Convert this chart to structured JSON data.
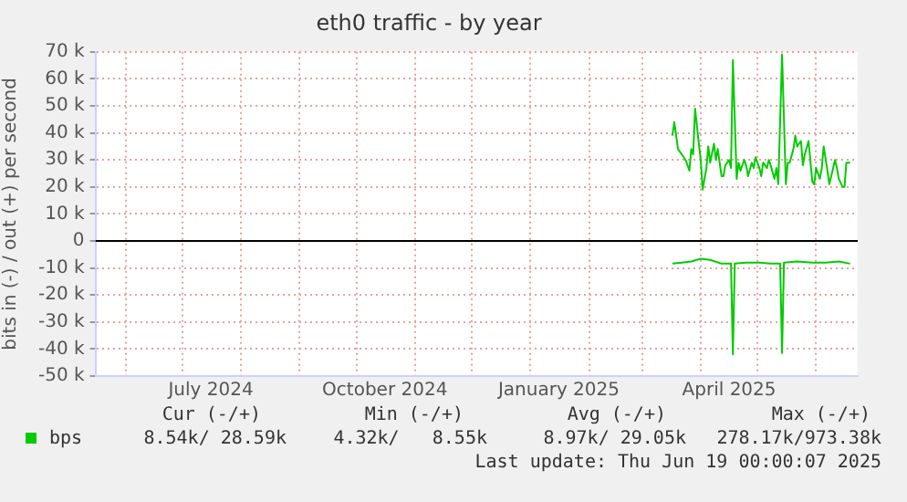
{
  "chart_data": {
    "type": "line",
    "title": "eth0 traffic - by year",
    "ylabel": "bits in (-) / out (+) per second",
    "xlim": [
      "2024-05-16",
      "2025-06-23"
    ],
    "xticks": [
      {
        "value": "2024-06-01",
        "label": null
      },
      {
        "value": "2024-07-01",
        "label": null
      },
      {
        "value": "2024-07-16",
        "label": "July 2024"
      },
      {
        "value": "2024-08-01",
        "label": null
      },
      {
        "value": "2024-09-01",
        "label": null
      },
      {
        "value": "2024-10-01",
        "label": null
      },
      {
        "value": "2024-10-16",
        "label": "October 2024"
      },
      {
        "value": "2024-11-01",
        "label": null
      },
      {
        "value": "2024-12-01",
        "label": null
      },
      {
        "value": "2025-01-01",
        "label": null
      },
      {
        "value": "2025-01-16",
        "label": "January 2025"
      },
      {
        "value": "2025-02-01",
        "label": null
      },
      {
        "value": "2025-03-01",
        "label": null
      },
      {
        "value": "2025-04-01",
        "label": null
      },
      {
        "value": "2025-04-16",
        "label": "April 2025"
      },
      {
        "value": "2025-05-01",
        "label": null
      },
      {
        "value": "2025-06-01",
        "label": null
      }
    ],
    "ylim": [
      -50000,
      70000
    ],
    "yticks": [
      {
        "value": -50000,
        "label": "-50 k"
      },
      {
        "value": -40000,
        "label": "-40 k"
      },
      {
        "value": -30000,
        "label": "-30 k"
      },
      {
        "value": -20000,
        "label": "-20 k"
      },
      {
        "value": -10000,
        "label": "-10 k"
      },
      0,
      {
        "value": 10000,
        "label": "10 k"
      },
      {
        "value": 20000,
        "label": "20 k"
      },
      {
        "value": 30000,
        "label": "30 k"
      },
      {
        "value": 40000,
        "label": "40 k"
      },
      {
        "value": 50000,
        "label": "50 k"
      },
      {
        "value": 60000,
        "label": "60 k"
      },
      {
        "value": 70000,
        "label": "70 k"
      }
    ],
    "grid": true,
    "legend": "bottom",
    "marker": "none",
    "line_style": "solid",
    "ref_lines": [
      {
        "axis": "y",
        "value": 0,
        "color": "#000000"
      }
    ],
    "series": [
      {
        "name": "bps",
        "color": "#00cc00",
        "x": [
          "2025-03-17",
          "2025-03-18",
          "2025-03-20",
          "2025-03-22",
          "2025-03-24",
          "2025-03-26",
          "2025-03-27",
          "2025-03-28",
          "2025-03-29",
          "2025-03-31",
          "2025-04-01",
          "2025-04-02",
          "2025-04-04",
          "2025-04-05",
          "2025-04-06",
          "2025-04-08",
          "2025-04-09",
          "2025-04-10",
          "2025-04-12",
          "2025-04-13",
          "2025-04-14",
          "2025-04-16",
          "2025-04-17",
          "2025-04-18",
          "2025-04-20",
          "2025-04-21",
          "2025-04-22",
          "2025-04-24",
          "2025-04-25",
          "2025-04-26",
          "2025-04-28",
          "2025-04-29",
          "2025-04-30",
          "2025-05-02",
          "2025-05-03",
          "2025-05-04",
          "2025-05-06",
          "2025-05-07",
          "2025-05-08",
          "2025-05-10",
          "2025-05-11",
          "2025-05-12",
          "2025-05-14",
          "2025-05-16",
          "2025-05-17",
          "2025-05-18",
          "2025-05-20",
          "2025-05-21",
          "2025-05-22",
          "2025-05-24",
          "2025-05-25",
          "2025-05-26",
          "2025-05-28",
          "2025-05-30",
          "2025-05-31",
          "2025-06-01",
          "2025-06-03",
          "2025-06-04",
          "2025-06-05",
          "2025-06-07",
          "2025-06-08",
          "2025-06-09",
          "2025-06-11",
          "2025-06-12",
          "2025-06-13",
          "2025-06-15",
          "2025-06-16",
          "2025-06-17",
          "2025-06-19"
        ],
        "values": [
          39000,
          44000,
          34000,
          32000,
          30000,
          26000,
          34000,
          32000,
          49000,
          36000,
          30000,
          19000,
          27000,
          35000,
          29000,
          36000,
          30000,
          34000,
          24000,
          24000,
          28000,
          30000,
          27000,
          67000,
          23000,
          29000,
          26000,
          30000,
          28000,
          24000,
          29000,
          27000,
          31000,
          27000,
          24000,
          29000,
          27000,
          30000,
          28000,
          23000,
          27000,
          21000,
          69000,
          21000,
          29000,
          29000,
          34000,
          39000,
          35000,
          37000,
          28000,
          32000,
          37000,
          22000,
          21000,
          27000,
          23000,
          27000,
          35000,
          26000,
          21000,
          24000,
          30000,
          27000,
          23000,
          20000,
          20000,
          29000,
          29000
        ]
      },
      {
        "color": "#00cc00",
        "x": [
          "2025-03-17",
          "2025-03-22",
          "2025-03-27",
          "2025-04-01",
          "2025-04-06",
          "2025-04-12",
          "2025-04-17",
          "2025-04-18",
          "2025-04-19",
          "2025-04-25",
          "2025-05-02",
          "2025-05-08",
          "2025-05-13",
          "2025-05-14",
          "2025-05-15",
          "2025-05-22",
          "2025-05-30",
          "2025-06-06",
          "2025-06-13",
          "2025-06-19"
        ],
        "values": [
          -8400,
          -8000,
          -7600,
          -6600,
          -7000,
          -8400,
          -8400,
          -42000,
          -8400,
          -8000,
          -8000,
          -8400,
          -8400,
          -41500,
          -8000,
          -7600,
          -8000,
          -8000,
          -7600,
          -8400
        ]
      }
    ],
    "annotations": [
      "Cur (-/+)",
      "Min (-/+)",
      "Avg (-/+)",
      "Max (-/+)",
      "8.54k/ 28.59k",
      "4.32k/   8.55k",
      "8.97k/ 29.05k",
      "278.17k/973.38k",
      "Last update: Thu Jun 19 00:00:07 2025"
    ]
  }
}
